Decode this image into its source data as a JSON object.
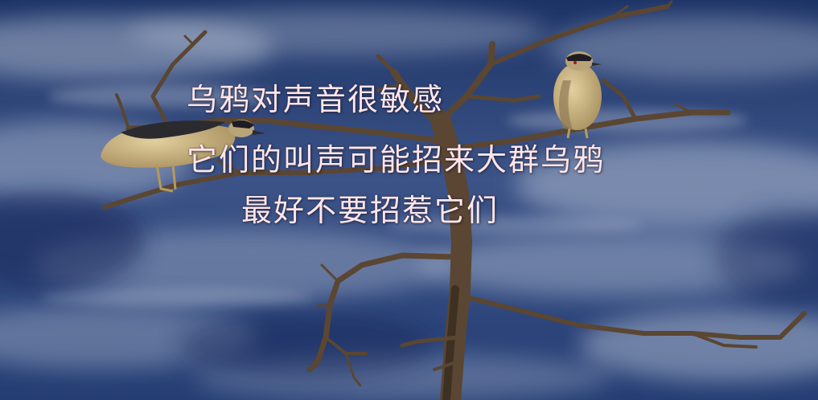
{
  "caption": {
    "lines": [
      "乌鸦对声音很敏感",
      "它们的叫声可能招来大群乌鸦",
      "最好不要招惹它们"
    ],
    "text_color": "#ffe6ea"
  },
  "scene": {
    "subjects": [
      "sky-with-clouds",
      "bare-dead-tree",
      "perched-bird",
      "perched-bird"
    ],
    "colors": {
      "sky_top": "#1c3366",
      "sky_bottom": "#243d73",
      "cloud": "#c4cede",
      "branch": "#5a4632",
      "bird_body": "#cdb889"
    }
  }
}
